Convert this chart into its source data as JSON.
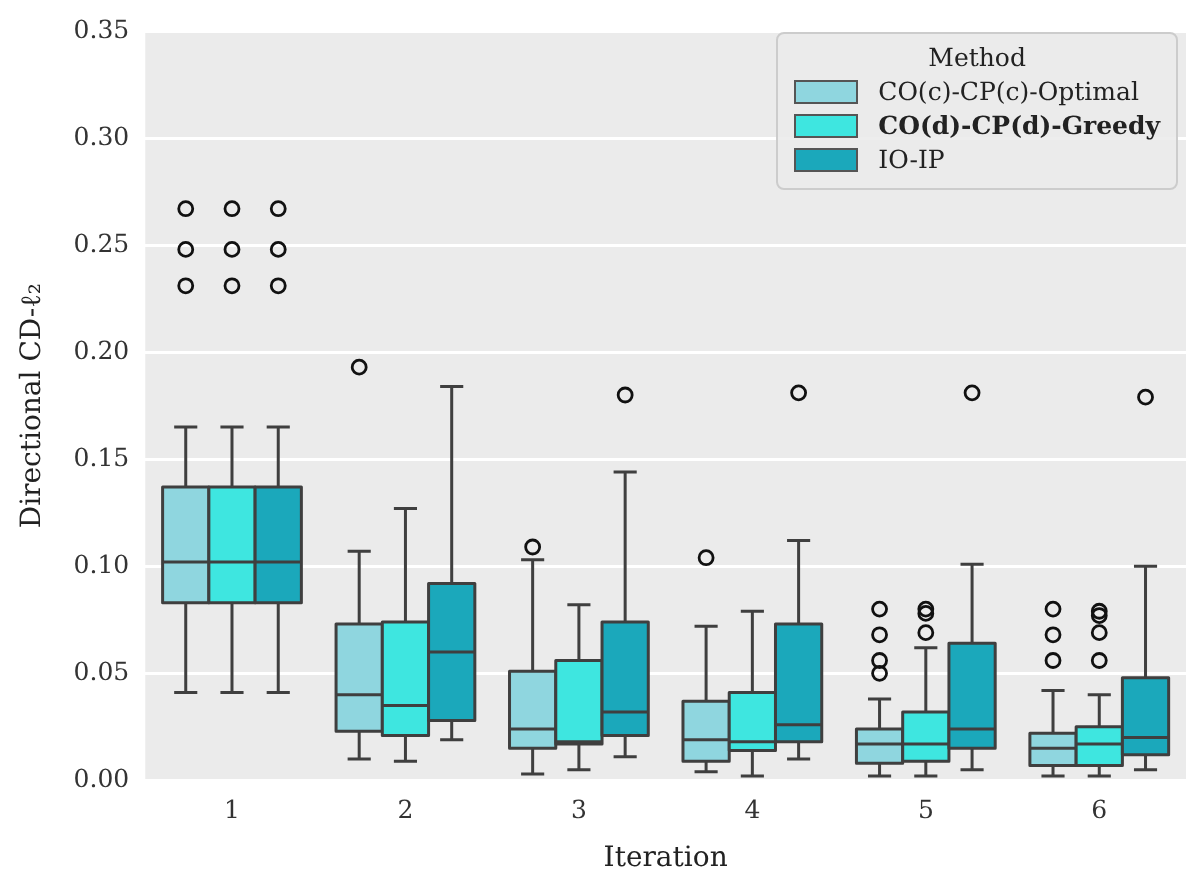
{
  "chart_data": {
    "type": "box",
    "xlabel": "Iteration",
    "ylabel": "Directional CD-ℓ₂",
    "legend_title": "Method",
    "categories": [
      "1",
      "2",
      "3",
      "4",
      "5",
      "6"
    ],
    "ylim": [
      0,
      0.35
    ],
    "yticks": [
      {
        "value": 0,
        "label": "0.00"
      },
      {
        "value": 0.05,
        "label": "0.05"
      },
      {
        "value": 0.1,
        "label": "0.10"
      },
      {
        "value": 0.15,
        "label": "0.15"
      },
      {
        "value": 0.2,
        "label": "0.20"
      },
      {
        "value": 0.25,
        "label": "0.25"
      },
      {
        "value": 0.3,
        "label": "0.30"
      },
      {
        "value": 0.35,
        "label": "0.35"
      }
    ],
    "grid": "y",
    "legend": "top right",
    "series": [
      {
        "name": "CO(c)-CP(c)-Optimal",
        "color": "#8fd6df",
        "boxes": [
          {
            "low": 0.041,
            "q1": 0.083,
            "median": 0.102,
            "q3": 0.137,
            "high": 0.165,
            "outliers": [
              0.231,
              0.248,
              0.267
            ]
          },
          {
            "low": 0.01,
            "q1": 0.023,
            "median": 0.04,
            "q3": 0.073,
            "high": 0.107,
            "outliers": [
              0.193
            ]
          },
          {
            "low": 0.003,
            "q1": 0.015,
            "median": 0.024,
            "q3": 0.051,
            "high": 0.103,
            "outliers": [
              0.109
            ]
          },
          {
            "low": 0.004,
            "q1": 0.009,
            "median": 0.019,
            "q3": 0.037,
            "high": 0.072,
            "outliers": [
              0.104
            ]
          },
          {
            "low": 0.002,
            "q1": 0.008,
            "median": 0.017,
            "q3": 0.024,
            "high": 0.038,
            "outliers": [
              0.05,
              0.056,
              0.068,
              0.08
            ]
          },
          {
            "low": 0.002,
            "q1": 0.007,
            "median": 0.015,
            "q3": 0.022,
            "high": 0.042,
            "outliers": [
              0.056,
              0.068,
              0.08
            ]
          }
        ]
      },
      {
        "name": "CO(d)-CP(d)-Greedy",
        "color": "#3ee6e0",
        "boxes": [
          {
            "low": 0.041,
            "q1": 0.083,
            "median": 0.102,
            "q3": 0.137,
            "high": 0.165,
            "outliers": [
              0.231,
              0.248,
              0.267
            ]
          },
          {
            "low": 0.009,
            "q1": 0.021,
            "median": 0.035,
            "q3": 0.074,
            "high": 0.127
          },
          {
            "low": 0.005,
            "q1": 0.017,
            "median": 0.018,
            "q3": 0.056,
            "high": 0.082
          },
          {
            "low": 0.002,
            "q1": 0.014,
            "median": 0.018,
            "q3": 0.041,
            "high": 0.079
          },
          {
            "low": 0.002,
            "q1": 0.009,
            "median": 0.017,
            "q3": 0.032,
            "high": 0.062,
            "outliers": [
              0.069,
              0.078,
              0.08
            ]
          },
          {
            "low": 0.002,
            "q1": 0.007,
            "median": 0.017,
            "q3": 0.025,
            "high": 0.04,
            "outliers": [
              0.056,
              0.069,
              0.077,
              0.079
            ]
          }
        ]
      },
      {
        "name": "IO-IP",
        "color": "#1ba8bb",
        "boxes": [
          {
            "low": 0.041,
            "q1": 0.083,
            "median": 0.102,
            "q3": 0.137,
            "high": 0.165,
            "outliers": [
              0.231,
              0.248,
              0.267
            ]
          },
          {
            "low": 0.019,
            "q1": 0.028,
            "median": 0.06,
            "q3": 0.092,
            "high": 0.184
          },
          {
            "low": 0.011,
            "q1": 0.021,
            "median": 0.032,
            "q3": 0.074,
            "high": 0.144,
            "outliers": [
              0.18
            ]
          },
          {
            "low": 0.01,
            "q1": 0.018,
            "median": 0.026,
            "q3": 0.073,
            "high": 0.112,
            "outliers": [
              0.181
            ]
          },
          {
            "low": 0.005,
            "q1": 0.015,
            "median": 0.024,
            "q3": 0.064,
            "high": 0.101,
            "outliers": [
              0.181
            ]
          },
          {
            "low": 0.005,
            "q1": 0.012,
            "median": 0.02,
            "q3": 0.048,
            "high": 0.1,
            "outliers": [
              0.179
            ]
          }
        ]
      }
    ]
  }
}
